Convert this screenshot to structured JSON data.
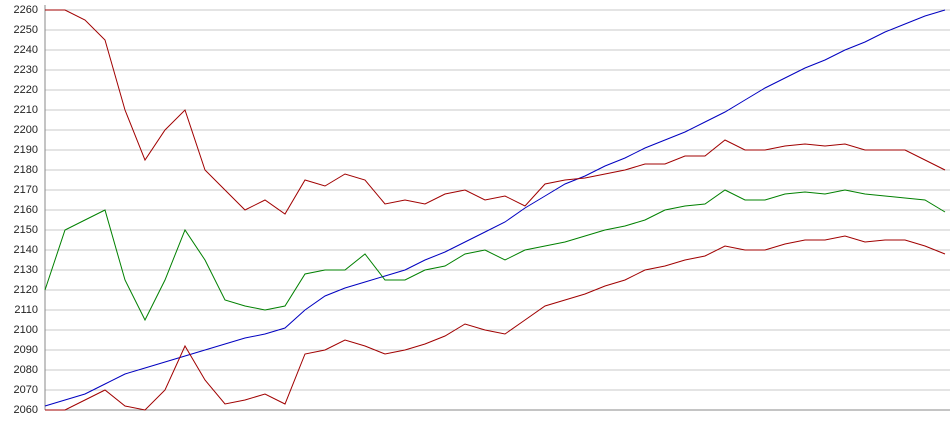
{
  "chart_data": {
    "type": "line",
    "categories": [
      null,
      null,
      null,
      null,
      null,
      null,
      null,
      null,
      null,
      null,
      null,
      null,
      null,
      null,
      null,
      null,
      null,
      null,
      null,
      null,
      null,
      null,
      null,
      null,
      null,
      null,
      null,
      null,
      null,
      null,
      null,
      null,
      null,
      null,
      null,
      null,
      null,
      null,
      null,
      null,
      null,
      null,
      null,
      null,
      null,
      null
    ],
    "series": [
      {
        "color": "#0000c0",
        "values": [
          2062,
          2065,
          2068,
          2073,
          2078,
          2081,
          2084,
          2087,
          2090,
          2093,
          2096,
          2098,
          2101,
          2110,
          2117,
          2121,
          2124,
          2127,
          2130,
          2135,
          2139,
          2144,
          2149,
          2154,
          2161,
          2167,
          2173,
          2177,
          2182,
          2186,
          2191,
          2195,
          2199,
          2204,
          2209,
          2215,
          2221,
          2226,
          2231,
          2235,
          2240,
          2244,
          2249,
          2253,
          2257,
          2260
        ]
      },
      {
        "color": "#a00000",
        "values": [
          2260,
          2260,
          2255,
          2245,
          2210,
          2185,
          2200,
          2210,
          2180,
          2170,
          2160,
          2165,
          2158,
          2175,
          2172,
          2178,
          2175,
          2163,
          2165,
          2163,
          2168,
          2170,
          2165,
          2167,
          2162,
          2173,
          2175,
          2176,
          2178,
          2180,
          2183,
          2183,
          2187,
          2187,
          2195,
          2190,
          2190,
          2192,
          2193,
          2192,
          2193,
          2190,
          2190,
          2190,
          2185,
          2180
        ]
      },
      {
        "color": "#008000",
        "values": [
          2120,
          2150,
          2155,
          2160,
          2125,
          2105,
          2125,
          2150,
          2135,
          2115,
          2112,
          2110,
          2112,
          2128,
          2130,
          2130,
          2138,
          2125,
          2125,
          2130,
          2132,
          2138,
          2140,
          2135,
          2140,
          2142,
          2144,
          2147,
          2150,
          2152,
          2155,
          2160,
          2162,
          2163,
          2170,
          2165,
          2165,
          2168,
          2169,
          2168,
          2170,
          2168,
          2167,
          2166,
          2165,
          2159
        ]
      },
      {
        "color": "#a00000",
        "values": [
          2060,
          2060,
          2065,
          2070,
          2062,
          2060,
          2070,
          2092,
          2075,
          2063,
          2065,
          2068,
          2063,
          2088,
          2090,
          2095,
          2092,
          2088,
          2090,
          2093,
          2097,
          2103,
          2100,
          2098,
          2105,
          2112,
          2115,
          2118,
          2122,
          2125,
          2130,
          2132,
          2135,
          2137,
          2142,
          2140,
          2140,
          2143,
          2145,
          2145,
          2147,
          2144,
          2145,
          2145,
          2142,
          2138
        ]
      }
    ],
    "ylim": [
      2060,
      2260
    ],
    "yticks": [
      2060,
      2070,
      2080,
      2090,
      2100,
      2110,
      2120,
      2130,
      2140,
      2150,
      2160,
      2170,
      2180,
      2190,
      2200,
      2210,
      2220,
      2230,
      2240,
      2250,
      2260
    ],
    "grid": true
  }
}
